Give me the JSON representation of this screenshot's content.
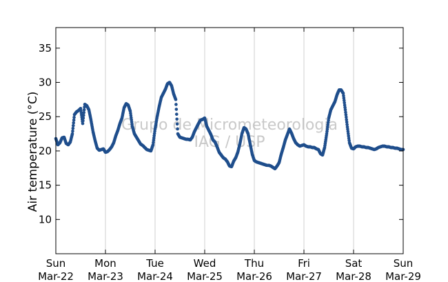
{
  "chart_data": {
    "type": "scatter",
    "title": "",
    "xlabel": "",
    "ylabel": "Air temperature (°C)",
    "xlim": [
      "2015-03-22T00:00",
      "2015-03-29T00:00"
    ],
    "ylim": [
      5,
      38
    ],
    "yticks": [
      10,
      15,
      20,
      25,
      30,
      35
    ],
    "xticks": [
      {
        "line1": "Sun",
        "line2": "Mar-22"
      },
      {
        "line1": "Mon",
        "line2": "Mar-23"
      },
      {
        "line1": "Tue",
        "line2": "Mar-24"
      },
      {
        "line1": "Wed",
        "line2": "Mar-25"
      },
      {
        "line1": "Thu",
        "line2": "Mar-26"
      },
      {
        "line1": "Fri",
        "line2": "Mar-27"
      },
      {
        "line1": "Sat",
        "line2": "Mar-28"
      },
      {
        "line1": "Sun",
        "line2": "Mar-29"
      }
    ],
    "grid": "vertical",
    "marker_color": "#1f4e8c",
    "watermark": {
      "line1": "Grupo de Micrometeorologia",
      "line2": "IAG / USP"
    },
    "series": [
      {
        "name": "",
        "x": [
          "2015-03-22T00:00",
          "2015-03-22T01:00",
          "2015-03-22T02:00",
          "2015-03-22T03:00",
          "2015-03-22T04:00",
          "2015-03-22T05:00",
          "2015-03-22T06:00",
          "2015-03-22T07:00",
          "2015-03-22T08:00",
          "2015-03-22T09:00",
          "2015-03-22T10:00",
          "2015-03-22T11:00",
          "2015-03-22T12:00",
          "2015-03-22T13:00",
          "2015-03-22T14:00",
          "2015-03-22T15:00",
          "2015-03-22T16:00",
          "2015-03-22T17:00",
          "2015-03-22T18:00",
          "2015-03-22T19:00",
          "2015-03-22T20:00",
          "2015-03-22T21:00",
          "2015-03-22T22:00",
          "2015-03-22T23:00",
          "2015-03-23T00:00",
          "2015-03-23T01:00",
          "2015-03-23T02:00",
          "2015-03-23T03:00",
          "2015-03-23T04:00",
          "2015-03-23T05:00",
          "2015-03-23T06:00",
          "2015-03-23T07:00",
          "2015-03-23T08:00",
          "2015-03-23T09:00",
          "2015-03-23T10:00",
          "2015-03-23T11:00",
          "2015-03-23T12:00",
          "2015-03-23T13:00",
          "2015-03-23T14:00",
          "2015-03-23T15:00",
          "2015-03-23T16:00",
          "2015-03-23T17:00",
          "2015-03-23T18:00",
          "2015-03-23T19:00",
          "2015-03-23T20:00",
          "2015-03-23T21:00",
          "2015-03-23T22:00",
          "2015-03-23T23:00",
          "2015-03-24T00:00",
          "2015-03-24T01:00",
          "2015-03-24T02:00",
          "2015-03-24T03:00",
          "2015-03-24T04:00",
          "2015-03-24T05:00",
          "2015-03-24T06:00",
          "2015-03-24T07:00",
          "2015-03-24T08:00",
          "2015-03-24T09:00",
          "2015-03-24T10:00",
          "2015-03-24T11:00",
          "2015-03-24T12:00",
          "2015-03-24T13:00",
          "2015-03-24T14:00",
          "2015-03-24T15:00",
          "2015-03-24T16:00",
          "2015-03-24T17:00",
          "2015-03-24T18:00",
          "2015-03-24T19:00",
          "2015-03-24T20:00",
          "2015-03-24T21:00",
          "2015-03-24T22:00",
          "2015-03-24T23:00",
          "2015-03-25T00:00",
          "2015-03-25T01:00",
          "2015-03-25T02:00",
          "2015-03-25T03:00",
          "2015-03-25T04:00",
          "2015-03-25T05:00",
          "2015-03-25T06:00",
          "2015-03-25T07:00",
          "2015-03-25T08:00",
          "2015-03-25T09:00",
          "2015-03-25T10:00",
          "2015-03-25T11:00",
          "2015-03-25T12:00",
          "2015-03-25T13:00",
          "2015-03-25T14:00",
          "2015-03-25T15:00",
          "2015-03-25T16:00",
          "2015-03-25T17:00",
          "2015-03-25T18:00",
          "2015-03-25T19:00",
          "2015-03-25T20:00",
          "2015-03-25T21:00",
          "2015-03-25T22:00",
          "2015-03-25T23:00",
          "2015-03-26T00:00",
          "2015-03-26T01:00",
          "2015-03-26T02:00",
          "2015-03-26T03:00",
          "2015-03-26T04:00",
          "2015-03-26T05:00",
          "2015-03-26T06:00",
          "2015-03-26T07:00",
          "2015-03-26T08:00",
          "2015-03-26T09:00",
          "2015-03-26T10:00",
          "2015-03-26T11:00",
          "2015-03-26T12:00",
          "2015-03-26T13:00",
          "2015-03-26T14:00",
          "2015-03-26T15:00",
          "2015-03-26T16:00",
          "2015-03-26T17:00",
          "2015-03-26T18:00",
          "2015-03-26T19:00",
          "2015-03-26T20:00",
          "2015-03-26T21:00",
          "2015-03-26T22:00",
          "2015-03-26T23:00",
          "2015-03-27T00:00",
          "2015-03-27T01:00",
          "2015-03-27T02:00",
          "2015-03-27T03:00",
          "2015-03-27T04:00",
          "2015-03-27T05:00",
          "2015-03-27T06:00",
          "2015-03-27T07:00",
          "2015-03-27T08:00",
          "2015-03-27T09:00",
          "2015-03-27T10:00",
          "2015-03-27T11:00",
          "2015-03-27T12:00",
          "2015-03-27T13:00",
          "2015-03-27T14:00",
          "2015-03-27T15:00",
          "2015-03-27T16:00",
          "2015-03-27T17:00",
          "2015-03-27T18:00",
          "2015-03-27T19:00",
          "2015-03-27T20:00",
          "2015-03-27T21:00",
          "2015-03-27T22:00",
          "2015-03-27T23:00",
          "2015-03-28T00:00",
          "2015-03-28T01:00",
          "2015-03-28T02:00",
          "2015-03-28T03:00",
          "2015-03-28T04:00",
          "2015-03-28T05:00",
          "2015-03-28T06:00",
          "2015-03-28T07:00",
          "2015-03-28T08:00",
          "2015-03-28T09:00",
          "2015-03-28T10:00",
          "2015-03-28T11:00",
          "2015-03-28T12:00",
          "2015-03-28T13:00",
          "2015-03-28T14:00",
          "2015-03-28T15:00",
          "2015-03-28T16:00",
          "2015-03-28T17:00",
          "2015-03-28T18:00",
          "2015-03-28T19:00",
          "2015-03-28T20:00",
          "2015-03-28T21:00",
          "2015-03-28T22:00",
          "2015-03-28T23:00",
          "2015-03-29T00:00"
        ],
        "y": [
          21.8,
          20.9,
          21.2,
          21.9,
          22.0,
          21.1,
          20.9,
          21.3,
          22.5,
          25.3,
          25.7,
          25.9,
          26.2,
          24.0,
          26.8,
          26.6,
          26.0,
          24.5,
          22.8,
          21.5,
          20.4,
          20.1,
          20.2,
          20.3,
          19.8,
          19.9,
          20.2,
          20.6,
          21.2,
          22.2,
          23.0,
          24.0,
          24.8,
          26.3,
          26.9,
          26.7,
          25.8,
          23.6,
          22.5,
          22.0,
          21.5,
          21.0,
          20.8,
          20.5,
          20.2,
          20.1,
          20.0,
          20.9,
          23.2,
          25.0,
          26.5,
          27.8,
          28.4,
          29.0,
          29.8,
          30.0,
          29.5,
          28.3,
          27.5,
          22.5,
          22.0,
          21.9,
          21.8,
          21.7,
          21.7,
          21.6,
          22.0,
          22.8,
          23.4,
          24.0,
          24.5,
          24.6,
          24.8,
          23.6,
          23.0,
          22.4,
          21.6,
          21.3,
          20.6,
          19.8,
          19.4,
          19.0,
          18.8,
          18.4,
          17.8,
          17.7,
          18.5,
          19.0,
          19.8,
          21.0,
          22.5,
          23.4,
          23.2,
          22.5,
          21.0,
          19.5,
          18.6,
          18.4,
          18.3,
          18.2,
          18.1,
          18.0,
          17.9,
          17.9,
          17.8,
          17.6,
          17.4,
          17.8,
          18.3,
          19.5,
          20.5,
          21.6,
          22.4,
          23.2,
          22.6,
          21.8,
          21.2,
          20.9,
          20.7,
          20.8,
          20.9,
          20.7,
          20.6,
          20.6,
          20.5,
          20.5,
          20.3,
          20.2,
          19.6,
          19.4,
          20.5,
          22.5,
          24.8,
          26.0,
          26.6,
          27.2,
          28.2,
          28.9,
          28.9,
          28.4,
          26.0,
          23.5,
          21.2,
          20.4,
          20.3,
          20.6,
          20.7,
          20.7,
          20.6,
          20.6,
          20.5,
          20.5,
          20.4,
          20.3,
          20.2,
          20.3,
          20.5,
          20.6,
          20.7,
          20.7,
          20.6,
          20.6,
          20.5,
          20.5,
          20.4,
          20.4,
          20.3,
          20.2,
          20.2
        ]
      }
    ]
  }
}
